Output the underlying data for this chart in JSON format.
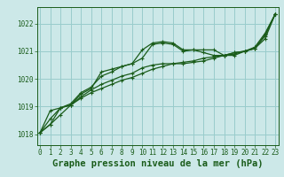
{
  "title": "Graphe pression niveau de la mer (hPa)",
  "background_color": "#cce8e8",
  "grid_color": "#99cccc",
  "line_color": "#1a5c1a",
  "x_ticks": [
    0,
    1,
    2,
    3,
    4,
    5,
    6,
    7,
    8,
    9,
    10,
    11,
    12,
    13,
    14,
    15,
    16,
    17,
    18,
    19,
    20,
    21,
    22,
    23
  ],
  "ylim": [
    1017.6,
    1022.6
  ],
  "yticks": [
    1018,
    1019,
    1020,
    1021,
    1022
  ],
  "series": [
    [
      1018.05,
      1018.35,
      1018.7,
      1019.05,
      1019.3,
      1019.5,
      1019.65,
      1019.8,
      1019.95,
      1020.05,
      1020.2,
      1020.35,
      1020.45,
      1020.55,
      1020.6,
      1020.65,
      1020.75,
      1020.8,
      1020.85,
      1020.9,
      1021.0,
      1021.1,
      1021.45,
      1022.35
    ],
    [
      1018.05,
      1018.35,
      1018.95,
      1019.05,
      1019.45,
      1019.65,
      1020.25,
      1020.35,
      1020.45,
      1020.55,
      1021.05,
      1021.3,
      1021.35,
      1021.3,
      1021.05,
      1021.05,
      1020.95,
      1020.85,
      1020.85,
      1020.95,
      1021.0,
      1021.1,
      1021.55,
      1022.35
    ],
    [
      1018.05,
      1018.55,
      1018.95,
      1019.1,
      1019.5,
      1019.7,
      1020.1,
      1020.25,
      1020.45,
      1020.55,
      1020.75,
      1021.25,
      1021.3,
      1021.25,
      1021.0,
      1021.05,
      1021.05,
      1021.05,
      1020.85,
      1020.85,
      1021.0,
      1021.1,
      1021.6,
      1022.35
    ],
    [
      1018.05,
      1018.85,
      1018.95,
      1019.05,
      1019.35,
      1019.6,
      1019.8,
      1019.95,
      1020.1,
      1020.2,
      1020.4,
      1020.5,
      1020.55,
      1020.55,
      1020.55,
      1020.6,
      1020.65,
      1020.75,
      1020.85,
      1020.95,
      1021.0,
      1021.15,
      1021.65,
      1022.35
    ]
  ],
  "marker": "P",
  "markersize": 2.8,
  "linewidth": 0.9,
  "title_fontsize": 7.5,
  "tick_fontsize": 5.5,
  "figsize": [
    3.2,
    2.0
  ],
  "dpi": 100
}
